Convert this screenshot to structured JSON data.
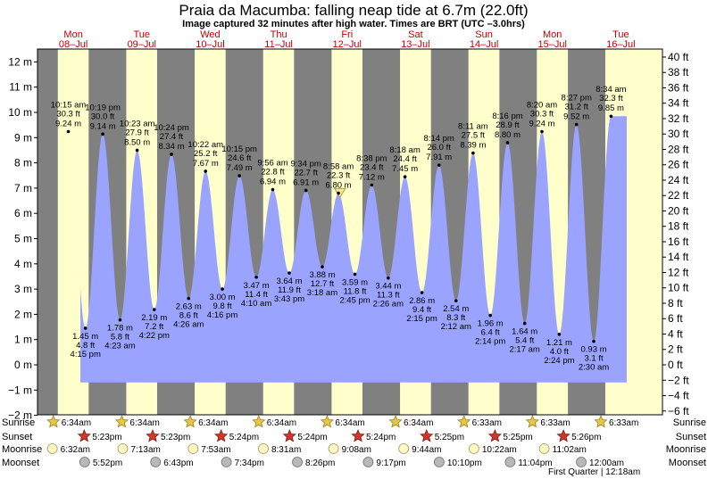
{
  "title": "Praia da Macumba: falling  neap tide at 6.7m (22.0ft)",
  "subtitle": "Image captured 32 minutes after high water. Times are BRT (UTC –3.0hrs)",
  "days": [
    {
      "name": "Mon",
      "date": "08–Jul"
    },
    {
      "name": "Tue",
      "date": "09–Jul"
    },
    {
      "name": "Wed",
      "date": "10–Jul"
    },
    {
      "name": "Thu",
      "date": "11–Jul"
    },
    {
      "name": "Fri",
      "date": "12–Jul"
    },
    {
      "name": "Sat",
      "date": "13–Jul"
    },
    {
      "name": "Sun",
      "date": "14–Jul"
    },
    {
      "name": "Mon",
      "date": "15–Jul"
    },
    {
      "name": "Tue",
      "date": "16–Jul"
    }
  ],
  "chart_data": {
    "type": "area",
    "y_left_ticks": [
      "12 m",
      "11 m",
      "10 m",
      "9 m",
      "8 m",
      "7 m",
      "6 m",
      "5 m",
      "4 m",
      "3 m",
      "2 m",
      "1 m",
      "0 m",
      "−1 m",
      "−2 m"
    ],
    "y_right_ticks": [
      "40 ft",
      "38 ft",
      "36 ft",
      "34 ft",
      "32 ft",
      "30 ft",
      "28 ft",
      "26 ft",
      "24 ft",
      "22 ft",
      "20 ft",
      "18 ft",
      "16 ft",
      "14 ft",
      "12 ft",
      "10 ft",
      "8 ft",
      "6 ft",
      "4 ft",
      "2 ft",
      "0 ft",
      "−2 ft",
      "−4 ft",
      "−6 ft"
    ],
    "ylim_m": [
      -2,
      12.5
    ],
    "current_level_m": 6.7,
    "tides": [
      {
        "type": "high",
        "day": 0,
        "time": "10:15 am",
        "ft": "30.3 ft",
        "m": "9.24 m",
        "h": 10.25,
        "v": 9.24
      },
      {
        "type": "low",
        "day": 0,
        "time": "4:15 pm",
        "ft": "4.8 ft",
        "m": "1.45 m",
        "h": 16.25,
        "v": 1.45
      },
      {
        "type": "high",
        "day": 0,
        "time": "10:19 pm",
        "ft": "30.0 ft",
        "m": "9.14 m",
        "h": 22.32,
        "v": 9.14
      },
      {
        "type": "low",
        "day": 1,
        "time": "4:23 am",
        "ft": "5.8 ft",
        "m": "1.78 m",
        "h": 4.38,
        "v": 1.78
      },
      {
        "type": "high",
        "day": 1,
        "time": "10:23 am",
        "ft": "27.9 ft",
        "m": "8.50 m",
        "h": 10.38,
        "v": 8.5
      },
      {
        "type": "low",
        "day": 1,
        "time": "4:22 pm",
        "ft": "7.2 ft",
        "m": "2.19 m",
        "h": 16.37,
        "v": 2.19
      },
      {
        "type": "high",
        "day": 1,
        "time": "10:24 pm",
        "ft": "27.4 ft",
        "m": "8.34 m",
        "h": 22.4,
        "v": 8.34
      },
      {
        "type": "low",
        "day": 2,
        "time": "4:26 am",
        "ft": "8.6 ft",
        "m": "2.63 m",
        "h": 4.43,
        "v": 2.63
      },
      {
        "type": "high",
        "day": 2,
        "time": "10:22 am",
        "ft": "25.2 ft",
        "m": "7.67 m",
        "h": 10.37,
        "v": 7.67
      },
      {
        "type": "low",
        "day": 2,
        "time": "4:16 pm",
        "ft": "9.8 ft",
        "m": "3.00 m",
        "h": 16.27,
        "v": 3.0
      },
      {
        "type": "high",
        "day": 2,
        "time": "10:15 pm",
        "ft": "24.6 ft",
        "m": "7.49 m",
        "h": 22.25,
        "v": 7.49
      },
      {
        "type": "low",
        "day": 3,
        "time": "4:10 am",
        "ft": "11.4 ft",
        "m": "3.47 m",
        "h": 4.17,
        "v": 3.47
      },
      {
        "type": "high",
        "day": 3,
        "time": "9:56 am",
        "ft": "22.8 ft",
        "m": "6.94 m",
        "h": 9.93,
        "v": 6.94
      },
      {
        "type": "low",
        "day": 3,
        "time": "3:43 pm",
        "ft": "11.9 ft",
        "m": "3.64 m",
        "h": 15.72,
        "v": 3.64
      },
      {
        "type": "high",
        "day": 3,
        "time": "9:34 pm",
        "ft": "22.7 ft",
        "m": "6.91 m",
        "h": 21.57,
        "v": 6.91
      },
      {
        "type": "low",
        "day": 4,
        "time": "3:18 am",
        "ft": "12.7 ft",
        "m": "3.88 m",
        "h": 3.3,
        "v": 3.88
      },
      {
        "type": "high",
        "day": 4,
        "time": "8:58 am",
        "ft": "22.3 ft",
        "m": "6.80 m",
        "h": 8.97,
        "v": 6.8
      },
      {
        "type": "low",
        "day": 4,
        "time": "2:45 pm",
        "ft": "11.8 ft",
        "m": "3.59 m",
        "h": 14.75,
        "v": 3.59
      },
      {
        "type": "high",
        "day": 4,
        "time": "8:38 pm",
        "ft": "23.4 ft",
        "m": "7.12 m",
        "h": 20.63,
        "v": 7.12
      },
      {
        "type": "low",
        "day": 5,
        "time": "2:26 am",
        "ft": "11.3 ft",
        "m": "3.44 m",
        "h": 2.43,
        "v": 3.44
      },
      {
        "type": "high",
        "day": 5,
        "time": "8:18 am",
        "ft": "24.4 ft",
        "m": "7.45 m",
        "h": 8.3,
        "v": 7.45
      },
      {
        "type": "low",
        "day": 5,
        "time": "2:15 pm",
        "ft": "9.4 ft",
        "m": "2.86 m",
        "h": 14.25,
        "v": 2.86
      },
      {
        "type": "high",
        "day": 5,
        "time": "8:14 pm",
        "ft": "26.0 ft",
        "m": "7.91 m",
        "h": 20.23,
        "v": 7.91
      },
      {
        "type": "low",
        "day": 6,
        "time": "2:12 am",
        "ft": "8.3 ft",
        "m": "2.54 m",
        "h": 2.2,
        "v": 2.54
      },
      {
        "type": "high",
        "day": 6,
        "time": "8:11 am",
        "ft": "27.5 ft",
        "m": "8.39 m",
        "h": 8.18,
        "v": 8.39
      },
      {
        "type": "low",
        "day": 6,
        "time": "2:14 pm",
        "ft": "6.4 ft",
        "m": "1.96 m",
        "h": 14.23,
        "v": 1.96
      },
      {
        "type": "high",
        "day": 6,
        "time": "8:16 pm",
        "ft": "28.9 ft",
        "m": "8.80 m",
        "h": 20.27,
        "v": 8.8
      },
      {
        "type": "low",
        "day": 7,
        "time": "2:17 am",
        "ft": "5.4 ft",
        "m": "1.64 m",
        "h": 2.28,
        "v": 1.64
      },
      {
        "type": "high",
        "day": 7,
        "time": "8:20 am",
        "ft": "30.3 ft",
        "m": "9.24 m",
        "h": 8.33,
        "v": 9.24
      },
      {
        "type": "low",
        "day": 7,
        "time": "2:24 pm",
        "ft": "4.0 ft",
        "m": "1.21 m",
        "h": 14.4,
        "v": 1.21
      },
      {
        "type": "high",
        "day": 7,
        "time": "8:27 pm",
        "ft": "31.2 ft",
        "m": "9.52 m",
        "h": 20.45,
        "v": 9.52
      },
      {
        "type": "low",
        "day": 8,
        "time": "2:30 am",
        "ft": "3.1 ft",
        "m": "0.93 m",
        "h": 2.5,
        "v": 0.93
      },
      {
        "type": "high",
        "day": 8,
        "time": "8:34 am",
        "ft": "32.3 ft",
        "m": "9.85 m",
        "h": 8.57,
        "v": 9.85
      }
    ]
  },
  "rows": {
    "labels": {
      "sunrise": "Sunrise",
      "sunset": "Sunset",
      "moonrise": "Moonrise",
      "moonset": "Moonset"
    },
    "sunrise": [
      "6:34am",
      "6:34am",
      "6:34am",
      "6:34am",
      "6:34am",
      "6:34am",
      "6:33am",
      "6:33am",
      "6:33am"
    ],
    "sunset": [
      "5:23pm",
      "5:23pm",
      "5:24pm",
      "5:24pm",
      "5:24pm",
      "5:25pm",
      "5:25pm",
      "5:26pm"
    ],
    "moonrise": [
      "6:32am",
      "7:13am",
      "7:53am",
      "8:31am",
      "9:08am",
      "9:44am",
      "10:22am",
      "11:02am"
    ],
    "moonset": [
      "5:52pm",
      "6:43pm",
      "7:34pm",
      "8:26pm",
      "9:17pm",
      "10:10pm",
      "11:04pm",
      "12:00am"
    ],
    "moon_phase": "First Quarter | 12:18am"
  },
  "colors": {
    "night": "#808080",
    "day": "#ffffcc",
    "water": "#9aa4ff",
    "sun_icon": "#e8c840",
    "sunset_icon": "#d03828",
    "moonrise_icon": "#fff8c0",
    "moonset_icon": "#b8b8b8",
    "day_label": "#c00000"
  }
}
